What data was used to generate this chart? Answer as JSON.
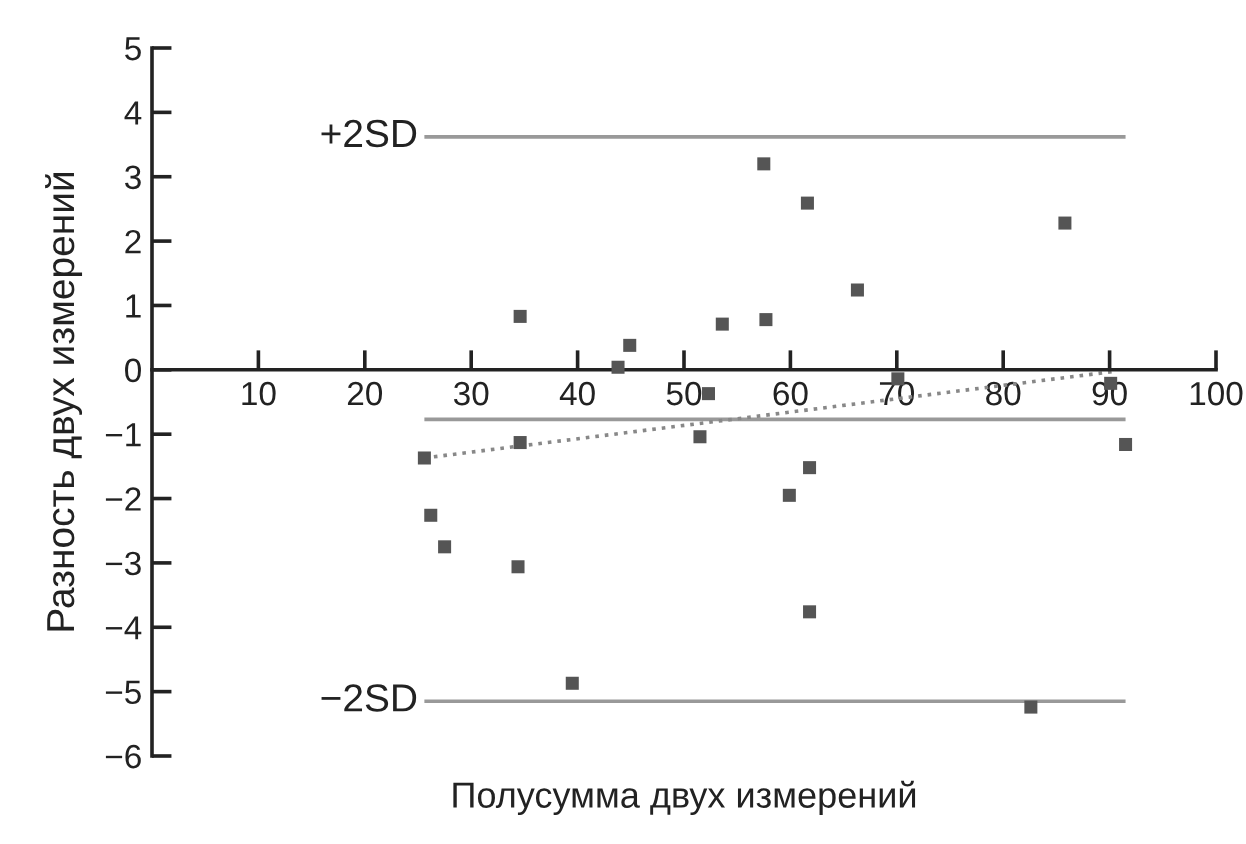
{
  "chart_data": {
    "type": "scatter",
    "xlabel": "Полусумма двух измерений",
    "ylabel": "Разность двух измерений",
    "xlim": [
      0,
      100
    ],
    "xticks": [
      10,
      20,
      30,
      40,
      50,
      60,
      70,
      80,
      90,
      100
    ],
    "ylim": [
      -6,
      5
    ],
    "yticks": [
      -6,
      -5,
      -4,
      -3,
      -2,
      -1,
      0,
      1,
      2,
      3,
      4,
      5
    ],
    "grid": false,
    "legend": false,
    "marker": "square",
    "series": [
      {
        "color": "#555555",
        "x": [
          34.6,
          43.8,
          44.9,
          53.6,
          57.5,
          57.7,
          61.6,
          66.3,
          85.8,
          70.1,
          90.1,
          52.3,
          51.5,
          34.6,
          25.6,
          91.5,
          61.8,
          59.9,
          26.2,
          27.5,
          34.4,
          61.8,
          39.5,
          82.6
        ],
        "values": [
          0.83,
          0.04,
          0.38,
          0.71,
          3.2,
          0.78,
          2.59,
          1.24,
          2.28,
          -0.14,
          -0.21,
          -0.37,
          -1.04,
          -1.13,
          -1.37,
          -1.16,
          -1.52,
          -1.95,
          -2.26,
          -2.75,
          -3.06,
          -3.76,
          -4.87,
          -5.24
        ]
      },
      {
        "type": "line",
        "color": "#888888",
        "line_style": "dotted",
        "marker": "none",
        "x": [
          25.6,
          90.2
        ],
        "values": [
          -1.37,
          -0.03
        ]
      }
    ],
    "ref_lines": [
      {
        "axis": "y",
        "value": 3.62,
        "label": "+2SD",
        "color": "#999999"
      },
      {
        "axis": "y",
        "value": -0.77,
        "color": "#999999"
      },
      {
        "axis": "y",
        "value": -5.15,
        "label": "−2SD",
        "color": "#999999"
      }
    ]
  }
}
